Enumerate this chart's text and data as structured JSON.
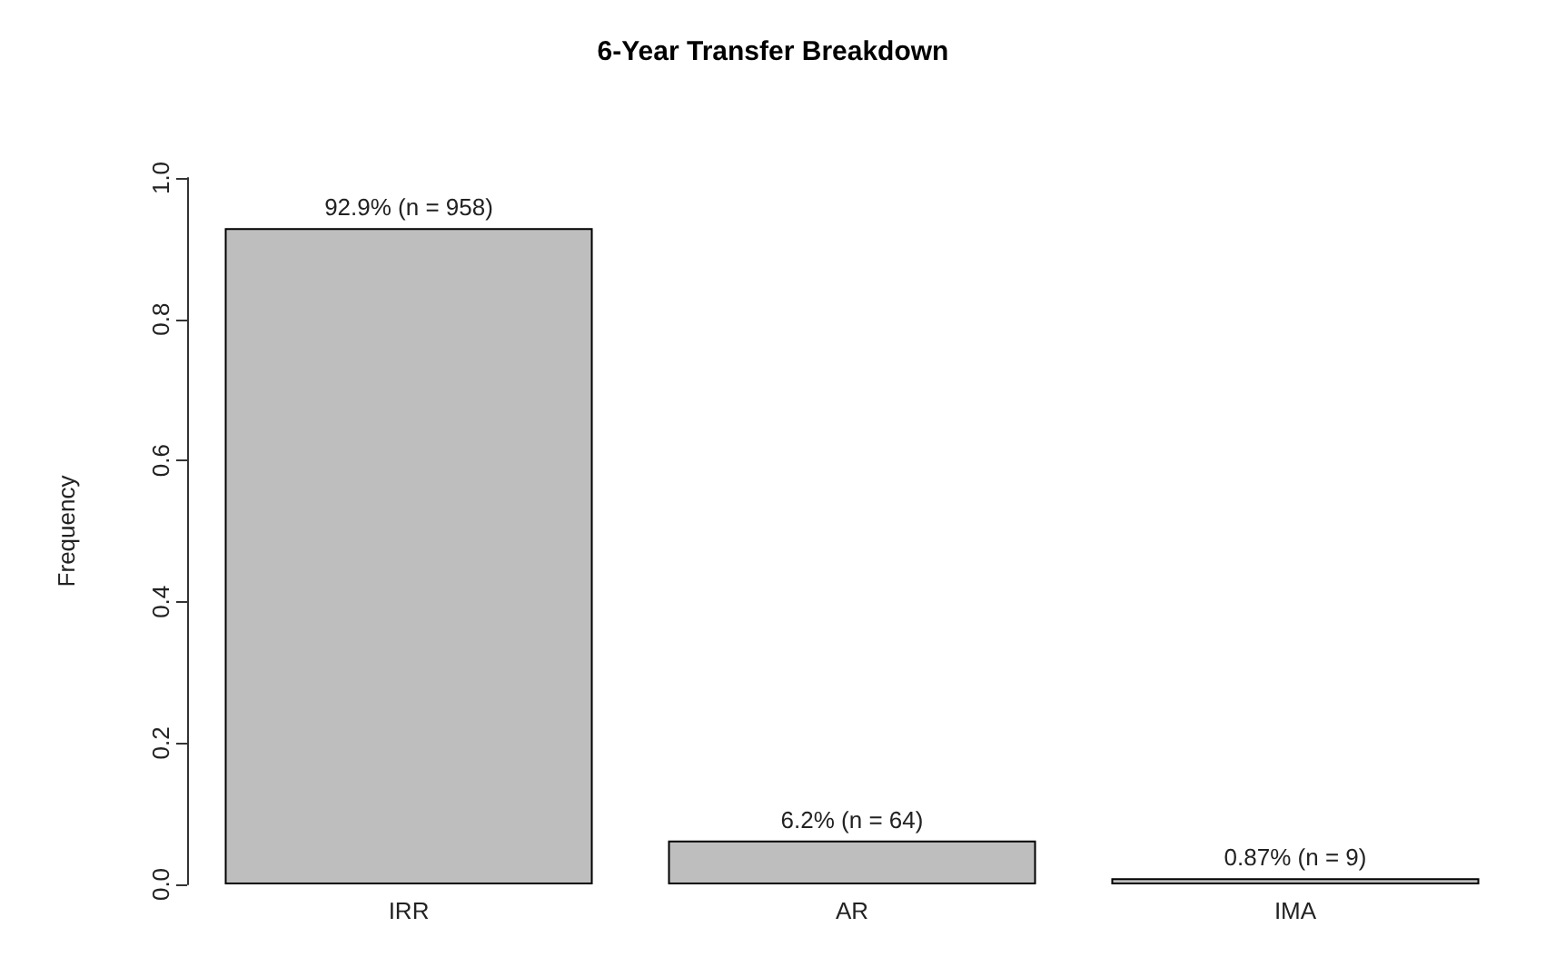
{
  "chart_data": {
    "type": "bar",
    "title": "6-Year Transfer Breakdown",
    "ylabel": "Frequency",
    "categories": [
      "IRR",
      "AR",
      "IMA"
    ],
    "values": [
      0.929,
      0.062,
      0.0087
    ],
    "value_labels": [
      "92.9% (n = 958)",
      "6.2% (n = 64)",
      "0.87% (n = 9)"
    ],
    "color": "#bebebe",
    "ylim": [
      0,
      1
    ],
    "yticks": [
      {
        "value": 0,
        "label": "0.0"
      },
      {
        "value": 0.2,
        "label": "0.2"
      },
      {
        "value": 0.4,
        "label": "0.4"
      },
      {
        "value": 0.6,
        "label": "0.6"
      },
      {
        "value": 0.8,
        "label": "0.8"
      },
      {
        "value": 1,
        "label": "1.0"
      }
    ]
  }
}
